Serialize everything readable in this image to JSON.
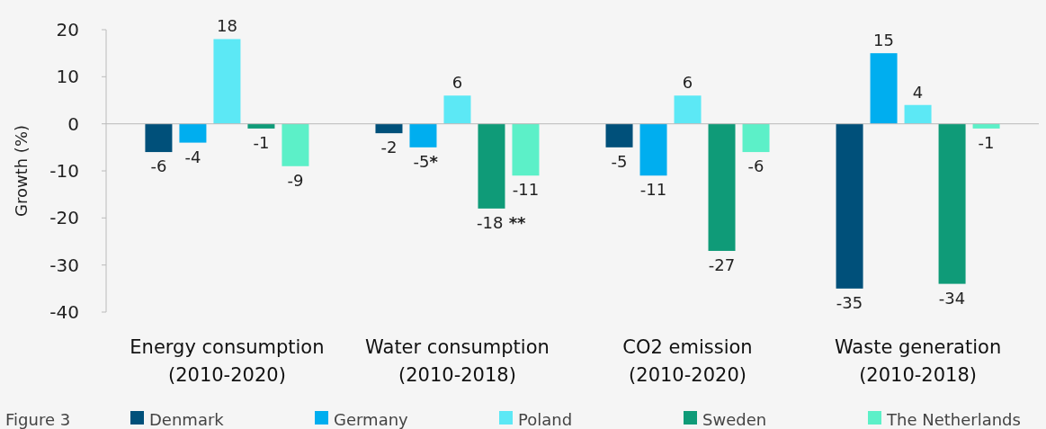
{
  "chart_data": {
    "type": "bar",
    "ylabel": "Growth (%)",
    "categories": [
      "Energy consumption\n(2010-2020)",
      "Water consumption\n(2010-2018)",
      "CO2 emission\n(2010-2020)",
      "Waste generation\n(2010-2018)"
    ],
    "series": [
      {
        "name": "Denmark",
        "color": "#00507a",
        "values": [
          -6,
          -2,
          -5,
          -35
        ],
        "value_labels": [
          "-6",
          "-2",
          "-5",
          "-35"
        ]
      },
      {
        "name": "Germany",
        "color": "#00aeef",
        "values": [
          -4,
          -5,
          -11,
          15
        ],
        "value_labels": [
          "-4",
          "-5*",
          "-11",
          "15"
        ]
      },
      {
        "name": "Poland",
        "color": "#5ce8f5",
        "values": [
          18,
          6,
          6,
          4
        ],
        "value_labels": [
          "18",
          "6",
          "6",
          "4"
        ]
      },
      {
        "name": "Sweden",
        "color": "#0f9b78",
        "values": [
          -1,
          -18,
          -27,
          -34
        ],
        "value_labels": [
          "-1",
          "-18 **",
          "-27",
          "-34"
        ]
      },
      {
        "name": "The Netherlands",
        "color": "#5cf0c8",
        "values": [
          -9,
          -11,
          -6,
          -1
        ],
        "value_labels": [
          "-9",
          "-11",
          "-6",
          "-1"
        ]
      }
    ],
    "ylim": [
      -40,
      20
    ],
    "yticks": [
      -40,
      -30,
      -20,
      -10,
      0,
      10,
      20
    ],
    "legend": "bottom",
    "annotations": [
      "Figure 3"
    ]
  }
}
